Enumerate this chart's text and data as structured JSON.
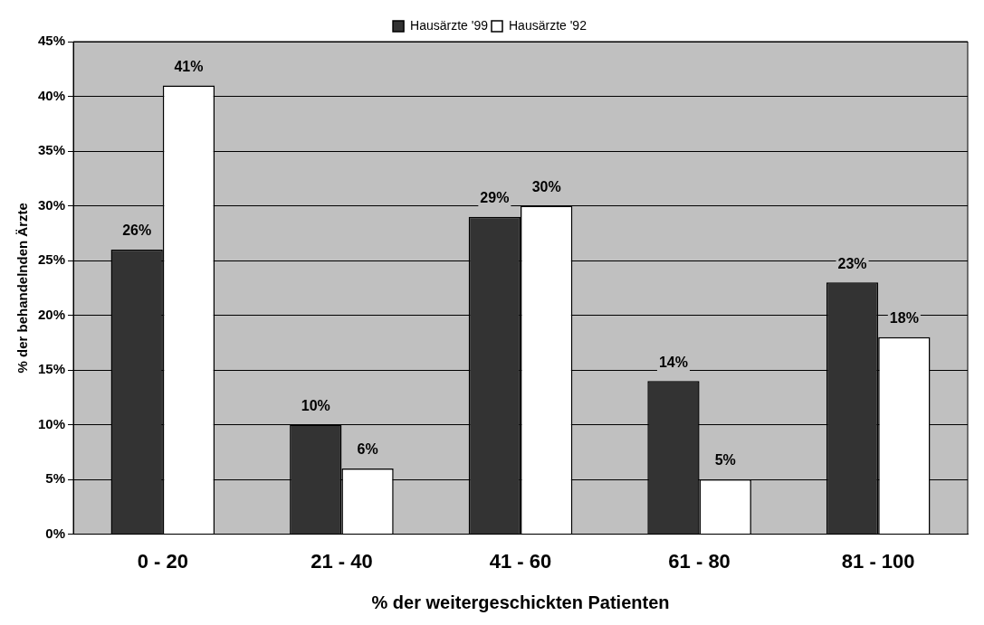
{
  "chart_data": {
    "type": "bar",
    "xlabel": "% der weitergeschickten Patienten",
    "ylabel": "% der behandelnden Ärzte",
    "categories": [
      "0 - 20",
      "21 - 40",
      "41 - 60",
      "61 - 80",
      "81 - 100"
    ],
    "series": [
      {
        "name": "Hausärzte '99",
        "color": "#333333",
        "values": [
          26,
          10,
          29,
          14,
          23
        ],
        "value_labels": [
          "26%",
          "10%",
          "29%",
          "14%",
          "23%"
        ]
      },
      {
        "name": "Hausärzte '92",
        "color": "#ffffff",
        "values": [
          41,
          6,
          30,
          5,
          18
        ],
        "value_labels": [
          "41%",
          "6%",
          "30%",
          "5%",
          "18%"
        ]
      }
    ],
    "ylim": [
      0,
      45
    ],
    "yticks": [
      {
        "value": 0,
        "label": "0%"
      },
      {
        "value": 5,
        "label": "5%"
      },
      {
        "value": 10,
        "label": "10%"
      },
      {
        "value": 15,
        "label": "15%"
      },
      {
        "value": 20,
        "label": "20%"
      },
      {
        "value": 25,
        "label": "25%"
      },
      {
        "value": 30,
        "label": "30%"
      },
      {
        "value": 35,
        "label": "35%"
      },
      {
        "value": 40,
        "label": "40%"
      },
      {
        "value": 45,
        "label": "45%"
      }
    ],
    "grid": "y",
    "legend": "top"
  }
}
